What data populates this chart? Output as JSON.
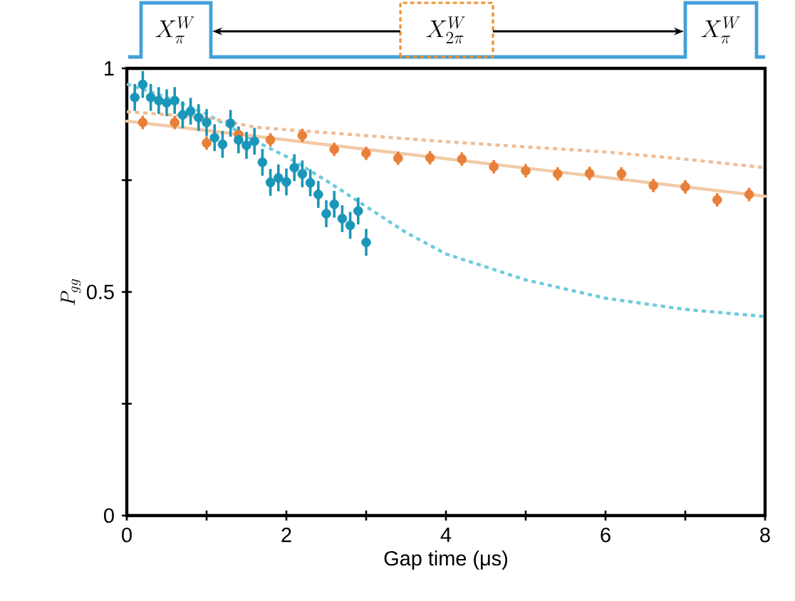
{
  "chart_data": {
    "type": "scatter",
    "xlabel": "Gap time (μs)",
    "ylabel": "P_{gg}",
    "annotations": [
      "X_{\\pi}^{W}",
      "X_{2\\pi}^{W}",
      "X_{\\pi}^{W}"
    ],
    "xlim": [
      0,
      8
    ],
    "ylim": [
      0,
      1
    ],
    "xticks": [
      0,
      {
        "value": 1,
        "label": null
      },
      2,
      {
        "value": 3,
        "label": null
      },
      4,
      {
        "value": 5,
        "label": null
      },
      6,
      {
        "value": 7,
        "label": null
      },
      8
    ],
    "yticks": [
      0,
      {
        "value": 0.25,
        "label": null
      },
      0.5,
      {
        "value": 0.75,
        "label": null
      },
      1
    ],
    "grid": false,
    "series": [
      {
        "type": "line",
        "line_style": "dotted",
        "marker": "none",
        "color": "#6ccbdc",
        "x": [
          0,
          0.5,
          1,
          1.625,
          2,
          2.5,
          3,
          3.5,
          4,
          5,
          6,
          7,
          8
        ],
        "values": [
          0.965,
          0.935,
          0.898,
          0.836,
          0.803,
          0.749,
          0.691,
          0.633,
          0.585,
          0.527,
          0.486,
          0.461,
          0.445
        ]
      },
      {
        "type": "line",
        "line_style": "dotted",
        "marker": "none",
        "color": "#efbd96",
        "x": [
          0,
          1,
          1.625,
          4,
          6,
          7,
          8
        ],
        "values": [
          0.903,
          0.89,
          0.868,
          0.836,
          0.813,
          0.797,
          0.778
        ]
      },
      {
        "type": "line",
        "line_style": "solid",
        "marker": "none",
        "color": "#f2caa6",
        "x": [
          0,
          8
        ],
        "values": [
          0.882,
          0.714
        ]
      },
      {
        "marker": "circle",
        "color": "#e8803a",
        "x": [
          0.2,
          0.6,
          1.0,
          1.4,
          1.8,
          2.2,
          2.6,
          3.0,
          3.4,
          3.8,
          4.2,
          4.6,
          5.0,
          5.4,
          5.8,
          6.2,
          6.6,
          7.0,
          7.4,
          7.8
        ],
        "values": [
          0.879,
          0.879,
          0.833,
          0.852,
          0.84,
          0.85,
          0.819,
          0.81,
          0.799,
          0.8,
          0.797,
          0.78,
          0.771,
          0.764,
          0.765,
          0.764,
          0.738,
          0.735,
          0.706,
          0.718
        ],
        "errors": [
          0.015,
          0.015,
          0.015,
          0.015,
          0.015,
          0.015,
          0.015,
          0.015,
          0.015,
          0.015,
          0.015,
          0.015,
          0.015,
          0.015,
          0.015,
          0.015,
          0.015,
          0.015,
          0.015,
          0.015
        ]
      },
      {
        "marker": "circle",
        "color": "#1a96b8",
        "x": [
          0.1,
          0.2,
          0.3,
          0.4,
          0.5,
          0.6,
          0.7,
          0.8,
          0.9,
          1.0,
          1.1,
          1.2,
          1.3,
          1.4,
          1.5,
          1.6,
          1.7,
          1.8,
          1.9,
          2.0,
          2.1,
          2.2,
          2.3,
          2.4,
          2.5,
          2.6,
          2.7,
          2.8,
          2.9,
          3.0
        ],
        "values": [
          0.935,
          0.964,
          0.935,
          0.928,
          0.923,
          0.928,
          0.896,
          0.904,
          0.89,
          0.879,
          0.845,
          0.83,
          0.877,
          0.84,
          0.828,
          0.837,
          0.79,
          0.745,
          0.755,
          0.746,
          0.778,
          0.764,
          0.744,
          0.718,
          0.675,
          0.696,
          0.664,
          0.649,
          0.681,
          0.611
        ],
        "errors": [
          0.03,
          0.03,
          0.03,
          0.03,
          0.03,
          0.03,
          0.03,
          0.03,
          0.03,
          0.03,
          0.03,
          0.03,
          0.03,
          0.03,
          0.03,
          0.03,
          0.03,
          0.03,
          0.03,
          0.03,
          0.03,
          0.03,
          0.03,
          0.03,
          0.03,
          0.03,
          0.03,
          0.03,
          0.03,
          0.03
        ]
      }
    ]
  }
}
